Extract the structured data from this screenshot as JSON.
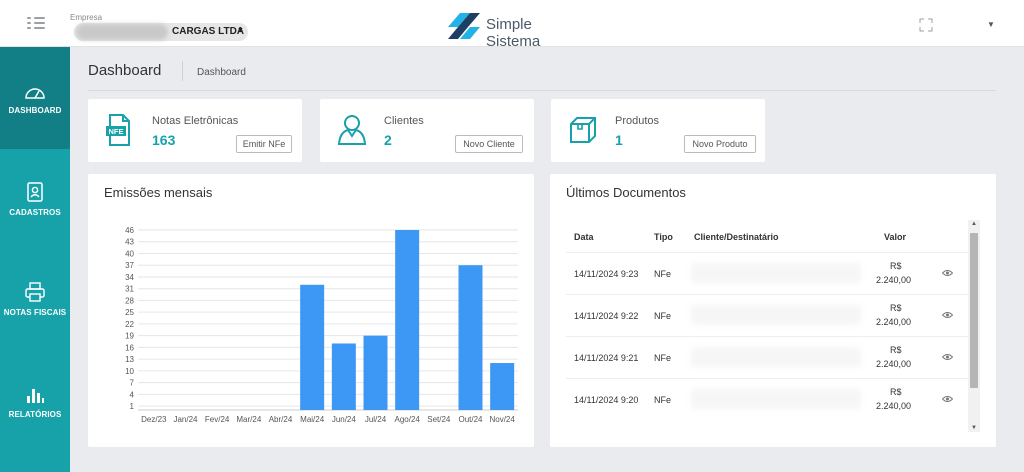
{
  "header": {
    "company_label": "Empresa",
    "company_name": "CARGAS LTDA",
    "logo_text": "Simple Sistema"
  },
  "sidebar": {
    "items": [
      {
        "label": "DASHBOARD",
        "icon": "speedometer-icon"
      },
      {
        "label": "CADASTROS",
        "icon": "id-card-icon"
      },
      {
        "label": "NOTAS FISCAIS",
        "icon": "printer-icon"
      },
      {
        "label": "RELATÓRIOS",
        "icon": "bar-chart-icon"
      }
    ]
  },
  "page": {
    "title": "Dashboard",
    "breadcrumb": "Dashboard"
  },
  "stats": [
    {
      "title": "Notas Eletrônicas",
      "value": "163",
      "button": "Emitir NFe",
      "icon": "nfe-document-icon"
    },
    {
      "title": "Clientes",
      "value": "2",
      "button": "Novo Cliente",
      "icon": "user-icon"
    },
    {
      "title": "Produtos",
      "value": "1",
      "button": "Novo Produto",
      "icon": "box-icon"
    }
  ],
  "chart_card": {
    "title": "Emissões mensais"
  },
  "chart_data": {
    "type": "bar",
    "categories": [
      "Dez/23",
      "Jan/24",
      "Fev/24",
      "Mar/24",
      "Abr/24",
      "Mai/24",
      "Jun/24",
      "Jul/24",
      "Ago/24",
      "Set/24",
      "Out/24",
      "Nov/24"
    ],
    "values": [
      0,
      0,
      0,
      0,
      0,
      32,
      17,
      19,
      46,
      0,
      37,
      12
    ],
    "yticks": [
      1,
      4,
      7,
      10,
      13,
      16,
      19,
      22,
      25,
      28,
      31,
      34,
      37,
      40,
      43,
      46
    ],
    "ylim": [
      0,
      46
    ],
    "color": "#3d97f5",
    "grid": true
  },
  "docs": {
    "title": "Últimos Documentos",
    "headers": {
      "date": "Data",
      "type": "Tipo",
      "client": "Cliente/Destinatário",
      "value": "Valor"
    },
    "rows": [
      {
        "date": "14/11/2024 9:23",
        "type": "NFe",
        "currency": "R$",
        "amount": "2.240,00"
      },
      {
        "date": "14/11/2024 9:22",
        "type": "NFe",
        "currency": "R$",
        "amount": "2.240,00"
      },
      {
        "date": "14/11/2024 9:21",
        "type": "NFe",
        "currency": "R$",
        "amount": "2.240,00"
      },
      {
        "date": "14/11/2024 9:20",
        "type": "NFe",
        "currency": "R$",
        "amount": "2.240,00"
      }
    ]
  }
}
